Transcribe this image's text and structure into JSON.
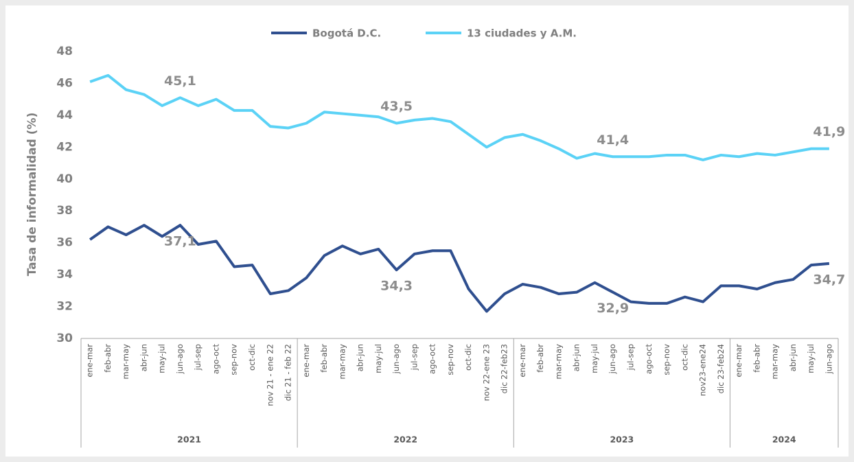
{
  "chart_data": {
    "type": "line",
    "y_label": "Tasa de informalidad (%)",
    "groups": [
      {
        "label": "2021",
        "categories": [
          "ene-mar",
          "feb-abr",
          "mar-may",
          "abr-jun",
          "may-jul",
          "jun-ago",
          "jul-sep",
          "ago-oct",
          "sep-nov",
          "oct-dic",
          "nov 21 - ene 22",
          "dic 21 - feb 22"
        ]
      },
      {
        "label": "2022",
        "categories": [
          "ene-mar",
          "feb-abr",
          "mar-may",
          "abr-jun",
          "may-jul",
          "jun-ago",
          "jul-sep",
          "ago-oct",
          "sep-nov",
          "oct-dic",
          "nov 22-ene 23",
          "dic 22-feb23"
        ]
      },
      {
        "label": "2023",
        "categories": [
          "ene-mar",
          "feb-abr",
          "mar-may",
          "abr-jun",
          "may-jul",
          "jun-ago",
          "jul-sep",
          "ago-oct",
          "sep-nov",
          "oct-dic",
          "nov23-ene24",
          "dic 23-feb24"
        ]
      },
      {
        "label": "2024",
        "categories": [
          "ene-mar",
          "feb-abr",
          "mar-may",
          "abr-jun",
          "may-jul",
          "jun-ago"
        ]
      }
    ],
    "series": [
      {
        "name": "Bogotá D.C.",
        "color": "#2f4f8f",
        "values": [
          36.2,
          37.0,
          36.5,
          37.1,
          36.4,
          37.1,
          35.9,
          36.1,
          34.5,
          34.6,
          32.8,
          33.0,
          33.8,
          35.2,
          35.8,
          35.3,
          35.6,
          34.3,
          35.3,
          35.5,
          35.5,
          33.1,
          31.7,
          32.8,
          33.4,
          33.2,
          32.8,
          32.9,
          33.5,
          32.9,
          32.3,
          32.2,
          32.2,
          32.6,
          32.3,
          33.3,
          33.3,
          33.1,
          33.5,
          33.7,
          34.6,
          34.7
        ],
        "value_labels": [
          null,
          null,
          null,
          null,
          null,
          "37,1",
          null,
          null,
          null,
          null,
          null,
          null,
          null,
          null,
          null,
          null,
          null,
          "34,3",
          null,
          null,
          null,
          null,
          null,
          null,
          null,
          null,
          null,
          null,
          null,
          "32,9",
          null,
          null,
          null,
          null,
          null,
          null,
          null,
          null,
          null,
          null,
          null,
          "34,7"
        ]
      },
      {
        "name": "13 ciudades y A.M.",
        "color": "#5bd2f6",
        "values": [
          46.1,
          46.5,
          45.6,
          45.3,
          44.6,
          45.1,
          44.6,
          45.0,
          44.3,
          44.3,
          43.3,
          43.2,
          43.5,
          44.2,
          44.1,
          44.0,
          43.9,
          43.5,
          43.7,
          43.8,
          43.6,
          42.8,
          42.0,
          42.6,
          42.8,
          42.4,
          41.9,
          41.3,
          41.6,
          41.4,
          41.4,
          41.4,
          41.5,
          41.5,
          41.2,
          41.5,
          41.4,
          41.6,
          41.5,
          41.7,
          41.9,
          41.9
        ],
        "value_labels": [
          null,
          null,
          null,
          null,
          null,
          "45,1",
          null,
          null,
          null,
          null,
          null,
          null,
          null,
          null,
          null,
          null,
          null,
          "43,5",
          null,
          null,
          null,
          null,
          null,
          null,
          null,
          null,
          null,
          null,
          null,
          "41,4",
          null,
          null,
          null,
          null,
          null,
          null,
          null,
          null,
          null,
          null,
          null,
          "41,9"
        ]
      }
    ],
    "ylim": [
      30,
      48
    ],
    "yticks": [
      30,
      32,
      34,
      36,
      38,
      40,
      42,
      44,
      46,
      48
    ],
    "grid": false,
    "legend": "top"
  }
}
